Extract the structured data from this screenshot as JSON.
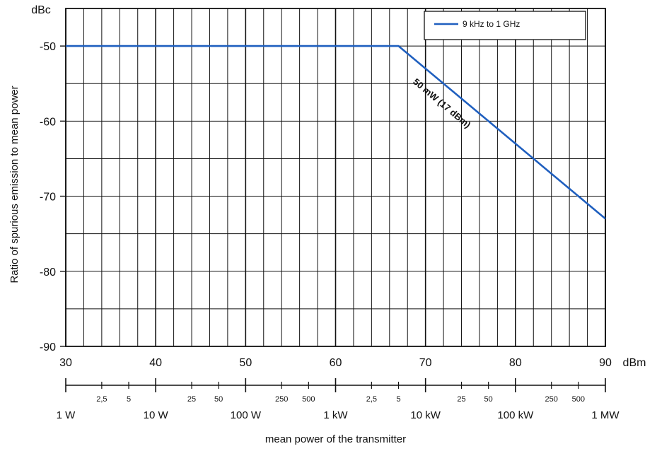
{
  "chart_data": {
    "type": "line",
    "title": "",
    "ylabel": "Ratio of spurious  emission to mean power",
    "yunit": "dBc",
    "xlabel": "mean power of the transmitter",
    "xunit": "dBm",
    "xlim": [
      30,
      90
    ],
    "ylim": [
      -90,
      -45
    ],
    "x_ticks": [
      30,
      40,
      50,
      60,
      70,
      80,
      90
    ],
    "y_ticks": [
      -50,
      -60,
      -70,
      -80,
      -90
    ],
    "y_tick_labels": [
      "-50",
      "-60",
      "-70",
      "-80",
      "-90"
    ],
    "x_tick_labels": [
      "30",
      "40",
      "50",
      "60",
      "70",
      "80",
      "90"
    ],
    "grid": true,
    "legend_position": "top-right",
    "series": [
      {
        "name": "9 kHz to 1 GHz",
        "color": "#1f5fbf",
        "x": [
          30,
          67,
          90
        ],
        "y": [
          -50,
          -50,
          -73
        ]
      }
    ],
    "annotation": {
      "text": "50 mW (17 dBm)",
      "x": 76,
      "y": -58.5
    },
    "power_sub_ticks": [
      {
        "dbm": 34,
        "label": "2,5"
      },
      {
        "dbm": 37,
        "label": "5"
      },
      {
        "dbm": 44,
        "label": "25"
      },
      {
        "dbm": 47,
        "label": "50"
      },
      {
        "dbm": 54,
        "label": "250"
      },
      {
        "dbm": 57,
        "label": "500"
      },
      {
        "dbm": 64,
        "label": "2,5"
      },
      {
        "dbm": 67,
        "label": "5"
      },
      {
        "dbm": 74,
        "label": "25"
      },
      {
        "dbm": 77,
        "label": "50"
      },
      {
        "dbm": 84,
        "label": "250"
      },
      {
        "dbm": 87,
        "label": "500"
      }
    ],
    "power_major": [
      {
        "dbm": 30,
        "label": "1 W"
      },
      {
        "dbm": 40,
        "label": "10 W"
      },
      {
        "dbm": 50,
        "label": "100 W"
      },
      {
        "dbm": 60,
        "label": "1 kW"
      },
      {
        "dbm": 70,
        "label": "10 kW"
      },
      {
        "dbm": 80,
        "label": "100 kW"
      },
      {
        "dbm": 90,
        "label": "1 MW"
      }
    ]
  }
}
